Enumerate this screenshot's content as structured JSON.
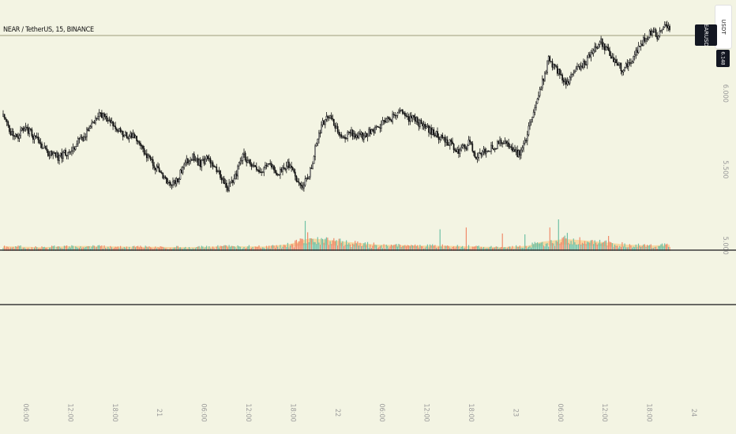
{
  "header": {
    "symbol_title": "NEAR / TetherUS, 15, BINANCE",
    "quote_tab": "USDT",
    "symbol_tag": "NEARUSDT",
    "price_tag": "6.148"
  },
  "colors": {
    "background": "#f3f4e3",
    "candle": "#111111",
    "volume_up": "#6fc1a6",
    "volume_down": "#f08a6a",
    "volume_ma_band": "#f6cf8e",
    "axis_text": "#9a9a9a",
    "pane_separator": "#3a3a3a",
    "reference_line": "#b9b99e"
  },
  "chart_data": {
    "type": "candlestick",
    "interval": "15m",
    "exchange": "BINANCE",
    "pair": "NEAR/USDT",
    "y_axis": {
      "ticks": [
        "6.000",
        "5.500",
        "5.000"
      ],
      "values": [
        6.0,
        5.5,
        5.0
      ],
      "ylim": [
        4.996,
        6.52
      ]
    },
    "x_axis": {
      "ticks": [
        "06:00",
        "12:00",
        "18:00",
        "21",
        "06:00",
        "12:00",
        "18:00",
        "22",
        "06:00",
        "12:00",
        "18:00",
        "23",
        "06:00",
        "12:00",
        "18:00",
        "24"
      ]
    },
    "price_anchors": [
      [
        0,
        5.85
      ],
      [
        5,
        5.75
      ],
      [
        12,
        5.72
      ],
      [
        18,
        5.78
      ],
      [
        28,
        5.68
      ],
      [
        36,
        5.6
      ],
      [
        45,
        5.58
      ],
      [
        55,
        5.64
      ],
      [
        65,
        5.72
      ],
      [
        72,
        5.82
      ],
      [
        78,
        5.86
      ],
      [
        86,
        5.8
      ],
      [
        92,
        5.76
      ],
      [
        100,
        5.72
      ],
      [
        108,
        5.7
      ],
      [
        115,
        5.58
      ],
      [
        122,
        5.52
      ],
      [
        128,
        5.44
      ],
      [
        134,
        5.39
      ],
      [
        140,
        5.44
      ],
      [
        146,
        5.55
      ],
      [
        152,
        5.58
      ],
      [
        158,
        5.54
      ],
      [
        164,
        5.57
      ],
      [
        170,
        5.5
      ],
      [
        176,
        5.44
      ],
      [
        180,
        5.38
      ],
      [
        186,
        5.45
      ],
      [
        192,
        5.6
      ],
      [
        198,
        5.54
      ],
      [
        206,
        5.49
      ],
      [
        212,
        5.53
      ],
      [
        220,
        5.48
      ],
      [
        228,
        5.53
      ],
      [
        235,
        5.44
      ],
      [
        240,
        5.4
      ],
      [
        246,
        5.49
      ],
      [
        252,
        5.7
      ],
      [
        256,
        5.8
      ],
      [
        262,
        5.86
      ],
      [
        268,
        5.74
      ],
      [
        274,
        5.71
      ],
      [
        280,
        5.74
      ],
      [
        288,
        5.72
      ],
      [
        296,
        5.76
      ],
      [
        304,
        5.8
      ],
      [
        312,
        5.84
      ],
      [
        318,
        5.88
      ],
      [
        325,
        5.84
      ],
      [
        330,
        5.83
      ],
      [
        338,
        5.77
      ],
      [
        346,
        5.74
      ],
      [
        352,
        5.7
      ],
      [
        360,
        5.66
      ],
      [
        366,
        5.62
      ],
      [
        374,
        5.68
      ],
      [
        378,
        5.58
      ],
      [
        384,
        5.62
      ],
      [
        392,
        5.64
      ],
      [
        400,
        5.68
      ],
      [
        406,
        5.66
      ],
      [
        412,
        5.6
      ],
      [
        416,
        5.62
      ],
      [
        420,
        5.74
      ],
      [
        426,
        5.9
      ],
      [
        432,
        6.08
      ],
      [
        437,
        6.22
      ],
      [
        442,
        6.18
      ],
      [
        446,
        6.13
      ],
      [
        452,
        6.06
      ],
      [
        458,
        6.14
      ],
      [
        464,
        6.19
      ],
      [
        468,
        6.22
      ],
      [
        473,
        6.28
      ],
      [
        478,
        6.35
      ],
      [
        484,
        6.28
      ],
      [
        490,
        6.22
      ],
      [
        496,
        6.16
      ],
      [
        502,
        6.2
      ],
      [
        508,
        6.28
      ],
      [
        514,
        6.36
      ],
      [
        520,
        6.41
      ],
      [
        524,
        6.38
      ],
      [
        530,
        6.45
      ],
      [
        534,
        6.42
      ]
    ],
    "volume_anchors": [
      [
        0,
        0.15
      ],
      [
        30,
        0.12
      ],
      [
        60,
        0.16
      ],
      [
        90,
        0.14
      ],
      [
        120,
        0.13
      ],
      [
        150,
        0.12
      ],
      [
        180,
        0.15
      ],
      [
        210,
        0.14
      ],
      [
        230,
        0.22
      ],
      [
        245,
        0.4
      ],
      [
        260,
        0.35
      ],
      [
        280,
        0.27
      ],
      [
        300,
        0.2
      ],
      [
        330,
        0.17
      ],
      [
        360,
        0.16
      ],
      [
        400,
        0.12
      ],
      [
        420,
        0.16
      ],
      [
        430,
        0.28
      ],
      [
        450,
        0.38
      ],
      [
        470,
        0.32
      ],
      [
        500,
        0.2
      ],
      [
        520,
        0.17
      ],
      [
        534,
        0.2
      ]
    ],
    "volume_spikes": [
      [
        242,
        1.0
      ],
      [
        244,
        0.62
      ],
      [
        350,
        0.72
      ],
      [
        371,
        0.78
      ],
      [
        400,
        0.58
      ],
      [
        418,
        0.55
      ],
      [
        438,
        0.78
      ],
      [
        445,
        1.05
      ],
      [
        452,
        0.6
      ],
      [
        485,
        0.5
      ]
    ],
    "volume_scale": {
      "max": 1.05
    }
  }
}
